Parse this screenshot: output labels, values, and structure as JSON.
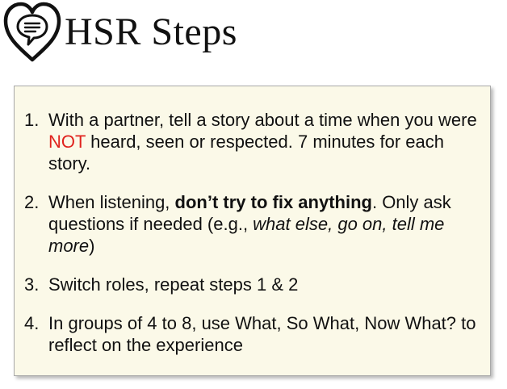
{
  "header": {
    "title": "HSR Steps",
    "logo_icon": "heart-speech-bubble-icon"
  },
  "colors": {
    "card_background": "#fbf9e8",
    "card_border": "#a9a9a9",
    "emphasis_red": "#e0231e",
    "text": "#111111"
  },
  "steps": [
    {
      "number": "1.",
      "text_1": "With a partner, tell a story about a time when you were ",
      "highlight": "NOT",
      "text_2": " heard, seen or respected.  7 minutes for each story."
    },
    {
      "number": "2.",
      "text_1": "When listening, ",
      "bold": "don’t try to fix anything",
      "text_2": ".  Only ask questions if needed (e.g., ",
      "italic": "what else, go on, tell me more",
      "text_3": ")"
    },
    {
      "number": "3.",
      "text_1": "Switch roles, repeat steps 1 & 2"
    },
    {
      "number": "4.",
      "text_1": "In groups of 4 to 8, use What, So What, Now What? to reflect on the experience"
    }
  ]
}
